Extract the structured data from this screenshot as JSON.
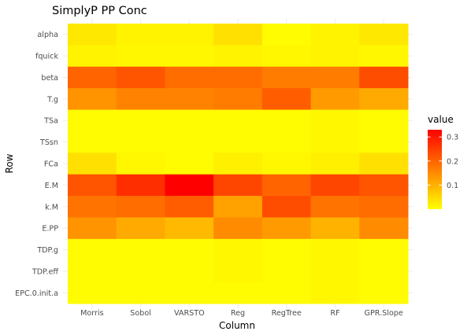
{
  "chart_data": {
    "type": "heatmap",
    "title": "SimplyP PP Conc",
    "xlabel": "Column",
    "ylabel": "Row",
    "columns": [
      "Morris",
      "Sobol",
      "VARSTO",
      "Reg",
      "RegTree",
      "RF",
      "GPR.Slope"
    ],
    "rows": [
      "alpha",
      "fquick",
      "beta",
      "T.g",
      "TSa",
      "TSsn",
      "FCa",
      "E.M",
      "k.M",
      "E.PP",
      "TDP.g",
      "TDP.eff",
      "EPC.0.init.a"
    ],
    "values": [
      [
        0.03,
        0.015,
        0.015,
        0.04,
        0.005,
        0.015,
        0.03
      ],
      [
        0.015,
        0.01,
        0.01,
        0.015,
        0.01,
        0.015,
        0.01
      ],
      [
        0.2,
        0.22,
        0.19,
        0.19,
        0.17,
        0.17,
        0.23
      ],
      [
        0.14,
        0.16,
        0.16,
        0.17,
        0.21,
        0.13,
        0.11
      ],
      [
        0.005,
        0.005,
        0.005,
        0.005,
        0.005,
        0.01,
        0.005
      ],
      [
        0.005,
        0.005,
        0.005,
        0.005,
        0.005,
        0.01,
        0.005
      ],
      [
        0.04,
        0.01,
        0.005,
        0.02,
        0.01,
        0.02,
        0.04
      ],
      [
        0.22,
        0.27,
        0.33,
        0.24,
        0.2,
        0.24,
        0.22
      ],
      [
        0.18,
        0.19,
        0.21,
        0.12,
        0.23,
        0.18,
        0.19
      ],
      [
        0.14,
        0.11,
        0.09,
        0.15,
        0.13,
        0.1,
        0.15
      ],
      [
        0.005,
        0.005,
        0.005,
        0.01,
        0.005,
        0.01,
        0.005
      ],
      [
        0.005,
        0.005,
        0.005,
        0.01,
        0.005,
        0.01,
        0.005
      ],
      [
        0.005,
        0.005,
        0.005,
        0.005,
        0.005,
        0.01,
        0.005
      ]
    ],
    "legend": {
      "title": "value",
      "ticks": [
        0.1,
        0.2,
        0.3
      ],
      "tick_labels": [
        "0.1",
        "0.2",
        "0.3"
      ],
      "range": [
        0.0,
        0.33
      ],
      "color_low": "#FFFF00",
      "color_high": "#FF0000",
      "position": "right"
    },
    "grid": true
  }
}
